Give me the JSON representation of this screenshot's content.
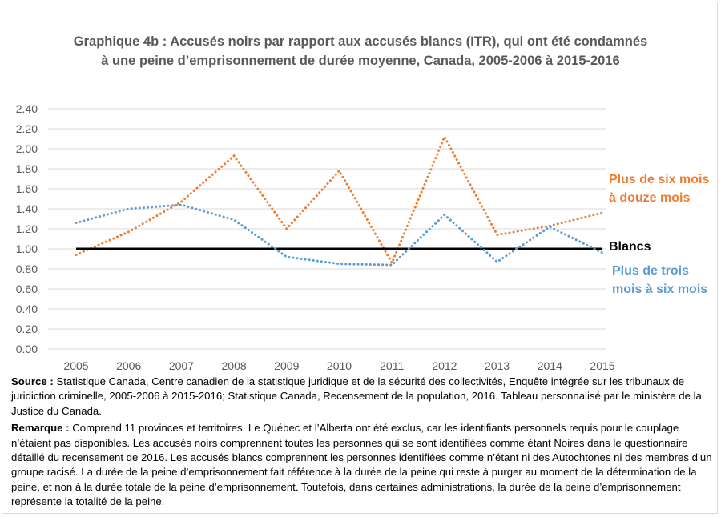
{
  "chart_data": {
    "type": "line",
    "title": "Graphique 4b : Accusés noirs par rapport aux accusés blancs (ITR), qui ont été condamnés à une peine d’emprisonnement de durée moyenne, Canada, 2005-2006 à 2015-2016",
    "categories": [
      "2005",
      "2006",
      "2007",
      "2008",
      "2009",
      "2010",
      "2011",
      "2012",
      "2013",
      "2014",
      "2015"
    ],
    "ylim": [
      0,
      2.4
    ],
    "yticks": [
      "0.00",
      "0.20",
      "0.40",
      "0.60",
      "0.80",
      "1.00",
      "1.20",
      "1.40",
      "1.60",
      "1.80",
      "2.00",
      "2.20",
      "2.40"
    ],
    "grid": true,
    "series": [
      {
        "name": "Plus de six mois à douze mois",
        "color": "#ED7D31",
        "style": "dotted",
        "values": [
          0.94,
          1.17,
          1.47,
          1.93,
          1.2,
          1.78,
          0.86,
          2.12,
          1.14,
          1.23,
          1.36
        ]
      },
      {
        "name": "Blancs",
        "color": "#000000",
        "style": "solid",
        "values": [
          1.0,
          1.0,
          1.0,
          1.0,
          1.0,
          1.0,
          1.0,
          1.0,
          1.0,
          1.0,
          1.0
        ]
      },
      {
        "name": "Plus de trois mois à six mois",
        "color": "#5B9BD5",
        "style": "dotted",
        "values": [
          1.26,
          1.4,
          1.44,
          1.29,
          0.92,
          0.85,
          0.84,
          1.34,
          0.87,
          1.22,
          0.96
        ]
      }
    ]
  },
  "labels": {
    "orange": "Plus de six mois à douze mois",
    "black": "Blancs",
    "blue": "Plus de trois mois à six mois"
  },
  "notes": {
    "source_label": "Source :",
    "source_text": "Statistique Canada, Centre canadien de la statistique juridique et de la sécurité des collectivités, Enquête intégrée sur les tribunaux de juridiction criminelle, 2005-2006 à 2015-2016; Statistique Canada, Recensement de la population, 2016. Tableau personnalisé par le ministère de la Justice du Canada.",
    "remark_label": "Remarque :",
    "remark_text": "Comprend 11 provinces et territoires. Le Québec et l’Alberta ont été exclus, car les identifiants personnels requis pour le couplage n’étaient pas disponibles. Les accusés noirs comprennent toutes les personnes qui se sont identifiées comme étant Noires dans le questionnaire détaillé du recensement de 2016. Les accusés blancs comprennent les personnes identifiées comme n’étant ni des Autochtones ni des membres d’un groupe racisé. La durée de la peine d’emprisonnement fait référence à la durée de la peine qui reste à purger au moment de la détermination de la peine, et non à la durée totale de la peine d’emprisonnement. Toutefois, dans certaines administrations, la durée de la peine d’emprisonnement représente la totalité de la peine."
  }
}
